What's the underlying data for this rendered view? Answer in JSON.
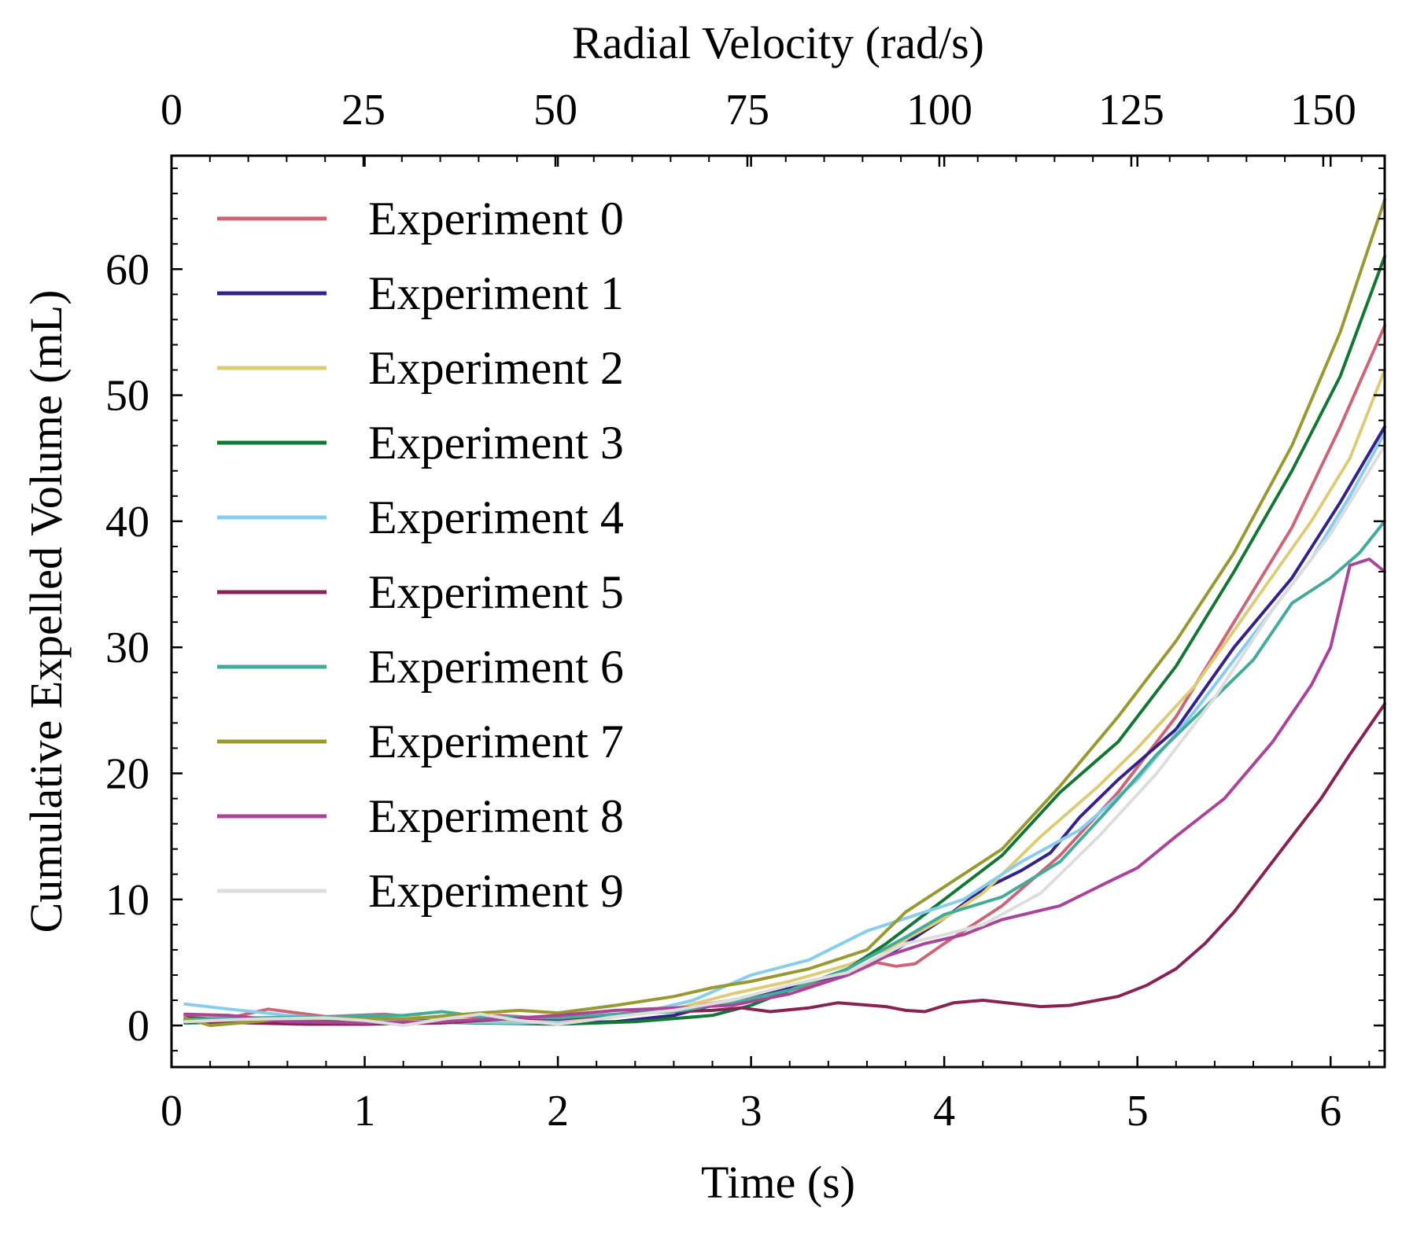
{
  "chart_data": {
    "type": "line",
    "xlabel": "Time (s)",
    "ylabel": "Cumulative Expelled Volume (mL)",
    "x2label": "Radial Velocity (rad/s)",
    "xlim": [
      0,
      6.28
    ],
    "ylim": [
      -3.3,
      69
    ],
    "x2lim": [
      0,
      158
    ],
    "xticks": [
      "0",
      "1",
      "2",
      "3",
      "4",
      "5",
      "6"
    ],
    "yticks": [
      "0",
      "10",
      "20",
      "30",
      "40",
      "50",
      "60"
    ],
    "x2ticks": [
      "0",
      "25",
      "50",
      "75",
      "100",
      "125",
      "150"
    ],
    "legend_position": "upper-left",
    "grid": false,
    "series": [
      {
        "name": "Experiment 0",
        "color": "#CC6677",
        "points": [
          [
            0.07,
            0.8
          ],
          [
            0.3,
            0.6
          ],
          [
            0.5,
            1.3
          ],
          [
            0.8,
            0.7
          ],
          [
            1.1,
            0.9
          ],
          [
            1.4,
            0.5
          ],
          [
            1.7,
            0.8
          ],
          [
            2.0,
            0.5
          ],
          [
            2.3,
            0.9
          ],
          [
            2.6,
            1.3
          ],
          [
            2.9,
            2.0
          ],
          [
            3.2,
            2.8
          ],
          [
            3.5,
            4.0
          ],
          [
            3.65,
            5.0
          ],
          [
            3.75,
            4.7
          ],
          [
            3.85,
            4.9
          ],
          [
            4.0,
            6.5
          ],
          [
            4.3,
            9.5
          ],
          [
            4.6,
            13.5
          ],
          [
            4.9,
            18.5
          ],
          [
            5.2,
            24.5
          ],
          [
            5.5,
            32.0
          ],
          [
            5.8,
            39.5
          ],
          [
            6.05,
            47.5
          ],
          [
            6.28,
            55.5
          ]
        ]
      },
      {
        "name": "Experiment 1",
        "color": "#332288",
        "points": [
          [
            0.07,
            0.6
          ],
          [
            0.4,
            0.5
          ],
          [
            0.8,
            0.4
          ],
          [
            1.2,
            0.5
          ],
          [
            1.6,
            0.3
          ],
          [
            2.0,
            0.2
          ],
          [
            2.3,
            0.3
          ],
          [
            2.6,
            0.8
          ],
          [
            2.9,
            2.0
          ],
          [
            3.2,
            3.0
          ],
          [
            3.5,
            4.2
          ],
          [
            3.7,
            5.5
          ],
          [
            4.0,
            8.5
          ],
          [
            4.2,
            10.8
          ],
          [
            4.4,
            12.3
          ],
          [
            4.55,
            13.7
          ],
          [
            4.7,
            16.5
          ],
          [
            4.9,
            19.5
          ],
          [
            5.2,
            23.5
          ],
          [
            5.5,
            30.0
          ],
          [
            5.8,
            35.5
          ],
          [
            6.05,
            41.5
          ],
          [
            6.28,
            47.5
          ]
        ]
      },
      {
        "name": "Experiment 2",
        "color": "#DDCC77",
        "points": [
          [
            0.07,
            0.9
          ],
          [
            0.4,
            0.6
          ],
          [
            0.8,
            0.5
          ],
          [
            1.2,
            0.7
          ],
          [
            1.6,
            0.4
          ],
          [
            2.0,
            0.4
          ],
          [
            2.3,
            0.8
          ],
          [
            2.6,
            1.3
          ],
          [
            2.9,
            2.5
          ],
          [
            3.2,
            3.5
          ],
          [
            3.5,
            4.8
          ],
          [
            3.7,
            6.0
          ],
          [
            4.0,
            8.5
          ],
          [
            4.2,
            10.5
          ],
          [
            4.5,
            15.0
          ],
          [
            4.8,
            19.0
          ],
          [
            5.0,
            22.0
          ],
          [
            5.3,
            27.0
          ],
          [
            5.6,
            33.5
          ],
          [
            5.9,
            40.0
          ],
          [
            6.1,
            45.0
          ],
          [
            6.28,
            52.0
          ]
        ]
      },
      {
        "name": "Experiment 3",
        "color": "#117733",
        "points": [
          [
            0.07,
            0.2
          ],
          [
            0.4,
            0.3
          ],
          [
            0.8,
            0.3
          ],
          [
            1.2,
            0.3
          ],
          [
            1.6,
            0.2
          ],
          [
            2.0,
            0.1
          ],
          [
            2.4,
            0.3
          ],
          [
            2.8,
            0.8
          ],
          [
            3.0,
            1.6
          ],
          [
            3.2,
            2.8
          ],
          [
            3.5,
            4.5
          ],
          [
            3.7,
            6.5
          ],
          [
            4.0,
            10.0
          ],
          [
            4.3,
            13.5
          ],
          [
            4.6,
            18.5
          ],
          [
            4.9,
            22.5
          ],
          [
            5.2,
            28.5
          ],
          [
            5.5,
            36.0
          ],
          [
            5.8,
            44.0
          ],
          [
            6.05,
            51.5
          ],
          [
            6.28,
            61.0
          ]
        ]
      },
      {
        "name": "Experiment 4",
        "color": "#88CCEE",
        "points": [
          [
            0.07,
            1.7
          ],
          [
            0.3,
            1.3
          ],
          [
            0.6,
            0.8
          ],
          [
            1.0,
            0.4
          ],
          [
            1.4,
            0.3
          ],
          [
            1.8,
            0.2
          ],
          [
            2.1,
            0.3
          ],
          [
            2.4,
            0.9
          ],
          [
            2.7,
            2.0
          ],
          [
            3.0,
            4.0
          ],
          [
            3.3,
            5.2
          ],
          [
            3.6,
            7.5
          ],
          [
            3.9,
            9.0
          ],
          [
            4.1,
            10.0
          ],
          [
            4.4,
            13.0
          ],
          [
            4.7,
            15.5
          ],
          [
            5.0,
            19.5
          ],
          [
            5.3,
            25.0
          ],
          [
            5.6,
            31.0
          ],
          [
            5.9,
            37.0
          ],
          [
            6.1,
            42.0
          ],
          [
            6.28,
            47.0
          ]
        ]
      },
      {
        "name": "Experiment 5",
        "color": "#882255",
        "points": [
          [
            0.07,
            0.4
          ],
          [
            0.4,
            0.2
          ],
          [
            0.7,
            0.1
          ],
          [
            1.0,
            0.1
          ],
          [
            1.4,
            0.2
          ],
          [
            1.8,
            0.6
          ],
          [
            2.0,
            0.5
          ],
          [
            2.4,
            1.0
          ],
          [
            2.8,
            1.2
          ],
          [
            2.95,
            1.4
          ],
          [
            3.1,
            1.1
          ],
          [
            3.3,
            1.4
          ],
          [
            3.45,
            1.8
          ],
          [
            3.7,
            1.5
          ],
          [
            3.8,
            1.2
          ],
          [
            3.9,
            1.1
          ],
          [
            4.05,
            1.8
          ],
          [
            4.2,
            2.0
          ],
          [
            4.5,
            1.5
          ],
          [
            4.65,
            1.6
          ],
          [
            4.9,
            2.3
          ],
          [
            5.05,
            3.2
          ],
          [
            5.2,
            4.5
          ],
          [
            5.35,
            6.5
          ],
          [
            5.5,
            9.0
          ],
          [
            5.65,
            12.0
          ],
          [
            5.8,
            15.0
          ],
          [
            5.95,
            18.0
          ],
          [
            6.1,
            21.5
          ],
          [
            6.28,
            25.5
          ]
        ]
      },
      {
        "name": "Experiment 6",
        "color": "#44AA99",
        "points": [
          [
            0.07,
            0.5
          ],
          [
            0.4,
            0.6
          ],
          [
            0.8,
            0.7
          ],
          [
            1.2,
            0.8
          ],
          [
            1.4,
            1.1
          ],
          [
            1.6,
            0.7
          ],
          [
            2.0,
            0.6
          ],
          [
            2.3,
            0.9
          ],
          [
            2.6,
            1.1
          ],
          [
            2.9,
            1.8
          ],
          [
            3.2,
            2.8
          ],
          [
            3.5,
            4.5
          ],
          [
            3.8,
            7.0
          ],
          [
            4.0,
            8.8
          ],
          [
            4.3,
            10.2
          ],
          [
            4.6,
            13.0
          ],
          [
            4.9,
            18.0
          ],
          [
            5.1,
            21.5
          ],
          [
            5.3,
            24.5
          ],
          [
            5.6,
            29.0
          ],
          [
            5.8,
            33.5
          ],
          [
            6.0,
            35.5
          ],
          [
            6.15,
            37.5
          ],
          [
            6.28,
            40.0
          ]
        ]
      },
      {
        "name": "Experiment 7",
        "color": "#999933",
        "points": [
          [
            0.07,
            0.6
          ],
          [
            0.2,
            0.0
          ],
          [
            0.5,
            0.4
          ],
          [
            0.8,
            0.6
          ],
          [
            1.2,
            0.5
          ],
          [
            1.6,
            1.0
          ],
          [
            1.8,
            1.2
          ],
          [
            2.0,
            1.0
          ],
          [
            2.3,
            1.6
          ],
          [
            2.6,
            2.3
          ],
          [
            2.8,
            3.0
          ],
          [
            3.0,
            3.5
          ],
          [
            3.3,
            4.5
          ],
          [
            3.6,
            6.0
          ],
          [
            3.8,
            9.0
          ],
          [
            4.0,
            11.0
          ],
          [
            4.3,
            14.0
          ],
          [
            4.6,
            19.0
          ],
          [
            4.9,
            24.5
          ],
          [
            5.2,
            30.5
          ],
          [
            5.5,
            37.5
          ],
          [
            5.8,
            46.0
          ],
          [
            6.05,
            55.0
          ],
          [
            6.28,
            65.5
          ]
        ]
      },
      {
        "name": "Experiment 8",
        "color": "#AA4499",
        "points": [
          [
            0.07,
            0.9
          ],
          [
            0.3,
            0.8
          ],
          [
            0.6,
            0.3
          ],
          [
            1.0,
            0.2
          ],
          [
            1.4,
            0.3
          ],
          [
            1.8,
            0.6
          ],
          [
            2.0,
            0.8
          ],
          [
            2.3,
            1.2
          ],
          [
            2.6,
            1.4
          ],
          [
            2.9,
            1.6
          ],
          [
            3.2,
            2.5
          ],
          [
            3.5,
            4.0
          ],
          [
            3.7,
            5.5
          ],
          [
            3.9,
            6.5
          ],
          [
            4.1,
            7.2
          ],
          [
            4.3,
            8.4
          ],
          [
            4.6,
            9.5
          ],
          [
            4.85,
            11.4
          ],
          [
            5.0,
            12.5
          ],
          [
            5.2,
            15.0
          ],
          [
            5.45,
            18.0
          ],
          [
            5.7,
            22.5
          ],
          [
            5.9,
            27.0
          ],
          [
            6.0,
            30.0
          ],
          [
            6.1,
            36.5
          ],
          [
            6.2,
            37.0
          ],
          [
            6.28,
            36.0
          ]
        ]
      },
      {
        "name": "Experiment 9",
        "color": "#DDDDDD",
        "points": [
          [
            0.07,
            0.3
          ],
          [
            0.4,
            0.5
          ],
          [
            0.8,
            0.6
          ],
          [
            1.0,
            0.4
          ],
          [
            1.2,
            0.0
          ],
          [
            1.4,
            0.5
          ],
          [
            1.6,
            0.9
          ],
          [
            1.8,
            0.4
          ],
          [
            2.0,
            0.1
          ],
          [
            2.3,
            0.7
          ],
          [
            2.6,
            1.2
          ],
          [
            2.9,
            2.0
          ],
          [
            3.2,
            3.2
          ],
          [
            3.5,
            4.2
          ],
          [
            3.8,
            6.5
          ],
          [
            4.0,
            7.2
          ],
          [
            4.2,
            8.0
          ],
          [
            4.5,
            10.5
          ],
          [
            4.8,
            15.0
          ],
          [
            5.1,
            20.0
          ],
          [
            5.4,
            26.0
          ],
          [
            5.7,
            33.0
          ],
          [
            6.0,
            39.0
          ],
          [
            6.28,
            46.0
          ]
        ]
      }
    ]
  }
}
